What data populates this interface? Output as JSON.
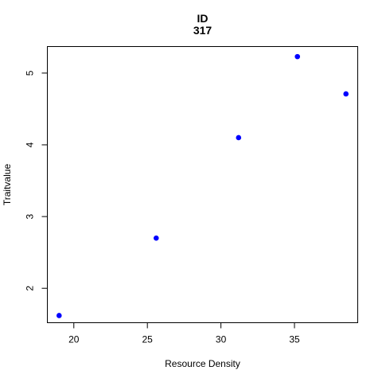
{
  "chart_data": {
    "type": "scatter",
    "title": "ID",
    "subtitle": "317",
    "xlabel": "Resource Density",
    "ylabel": "Traitvalue",
    "xlim": [
      18.2,
      39.3
    ],
    "ylim": [
      1.52,
      5.37
    ],
    "xticks": [
      20,
      25,
      30,
      35
    ],
    "yticks": [
      2,
      3,
      4,
      5
    ],
    "points": [
      {
        "x": 19.0,
        "y": 1.62
      },
      {
        "x": 25.6,
        "y": 2.7
      },
      {
        "x": 31.2,
        "y": 4.1
      },
      {
        "x": 35.2,
        "y": 5.23
      },
      {
        "x": 38.5,
        "y": 4.71
      }
    ],
    "point_color": "#0000ff",
    "grid": false,
    "legend": "none"
  }
}
